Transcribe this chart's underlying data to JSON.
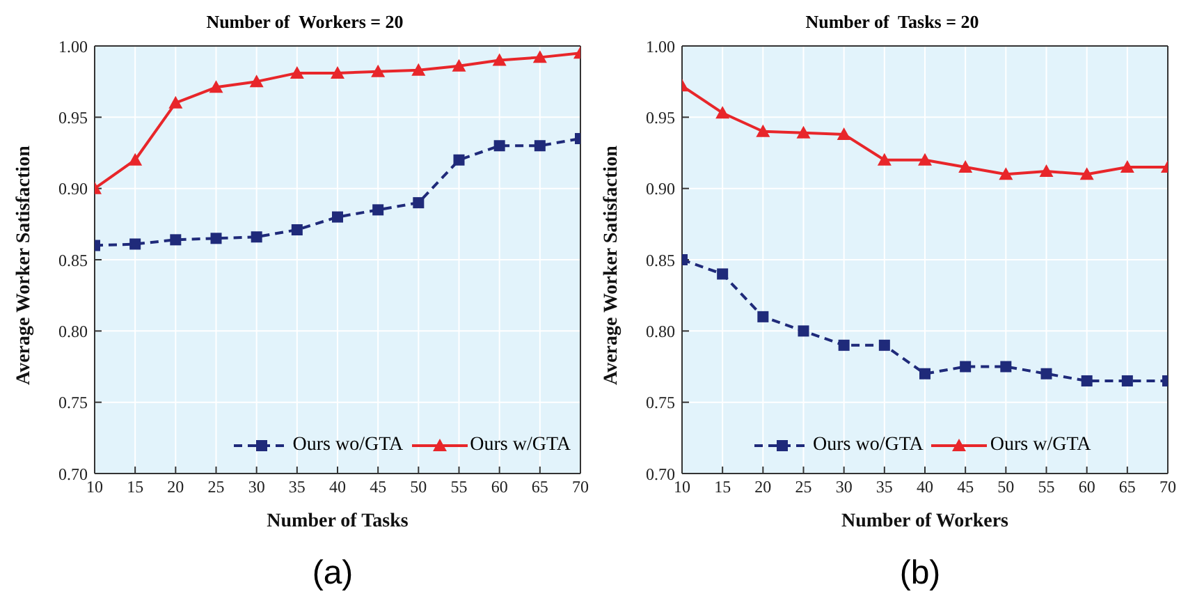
{
  "chart_data": [
    {
      "type": "line",
      "title": "Number of  Workers = 20",
      "xlabel": "Number of Tasks",
      "ylabel": "Average Worker Satisfaction",
      "annotations": [
        "(a)"
      ],
      "x": [
        10,
        15,
        20,
        25,
        30,
        35,
        40,
        45,
        50,
        55,
        60,
        65,
        70
      ],
      "series": [
        {
          "name": "Ours wo/GTA",
          "color": "#1f2a7a",
          "marker": "square",
          "line_style": "dashed",
          "values": [
            0.86,
            0.861,
            0.864,
            0.865,
            0.866,
            0.871,
            0.88,
            0.885,
            0.89,
            0.92,
            0.93,
            0.93,
            0.935
          ]
        },
        {
          "name": "Ours w/GTA",
          "color": "#e8262a",
          "marker": "triangle",
          "line_style": "solid",
          "values": [
            0.9,
            0.92,
            0.96,
            0.971,
            0.975,
            0.981,
            0.981,
            0.982,
            0.983,
            0.986,
            0.99,
            0.992,
            0.995
          ]
        }
      ],
      "xlim": [
        10,
        70
      ],
      "xticks": [
        10,
        15,
        20,
        25,
        30,
        35,
        40,
        45,
        50,
        55,
        60,
        65,
        70
      ],
      "ylim": [
        0.7,
        1.0
      ],
      "yticks": [
        {
          "value": 0.7,
          "label": "0.70"
        },
        {
          "value": 0.75,
          "label": "0.75"
        },
        {
          "value": 0.8,
          "label": "0.80"
        },
        {
          "value": 0.85,
          "label": "0.85"
        },
        {
          "value": 0.9,
          "label": "0.90"
        },
        {
          "value": 0.95,
          "label": "0.95"
        },
        {
          "value": 1.0,
          "label": "1.00"
        }
      ],
      "grid": true,
      "legend": "bottom right"
    },
    {
      "type": "line",
      "title": "Number of  Tasks = 20",
      "xlabel": "Number of Workers",
      "ylabel": "Average Worker Satisfaction",
      "annotations": [
        "(b)"
      ],
      "x": [
        10,
        15,
        20,
        25,
        30,
        35,
        40,
        45,
        50,
        55,
        60,
        65,
        70
      ],
      "series": [
        {
          "name": "Ours wo/GTA",
          "color": "#1f2a7a",
          "marker": "square",
          "line_style": "dashed",
          "values": [
            0.85,
            0.84,
            0.81,
            0.8,
            0.79,
            0.79,
            0.77,
            0.775,
            0.775,
            0.77,
            0.765,
            0.765,
            0.765
          ]
        },
        {
          "name": "Ours w/GTA",
          "color": "#e8262a",
          "marker": "triangle",
          "line_style": "solid",
          "values": [
            0.972,
            0.953,
            0.94,
            0.939,
            0.938,
            0.92,
            0.92,
            0.915,
            0.91,
            0.912,
            0.91,
            0.915,
            0.915
          ]
        }
      ],
      "xlim": [
        10,
        70
      ],
      "xticks": [
        10,
        15,
        20,
        25,
        30,
        35,
        40,
        45,
        50,
        55,
        60,
        65,
        70
      ],
      "ylim": [
        0.7,
        1.0
      ],
      "yticks": [
        {
          "value": 0.7,
          "label": "0.70"
        },
        {
          "value": 0.75,
          "label": "0.75"
        },
        {
          "value": 0.8,
          "label": "0.80"
        },
        {
          "value": 0.85,
          "label": "0.85"
        },
        {
          "value": 0.9,
          "label": "0.90"
        },
        {
          "value": 0.95,
          "label": "0.95"
        },
        {
          "value": 1.0,
          "label": "1.00"
        }
      ],
      "grid": true,
      "legend": "bottom"
    }
  ]
}
